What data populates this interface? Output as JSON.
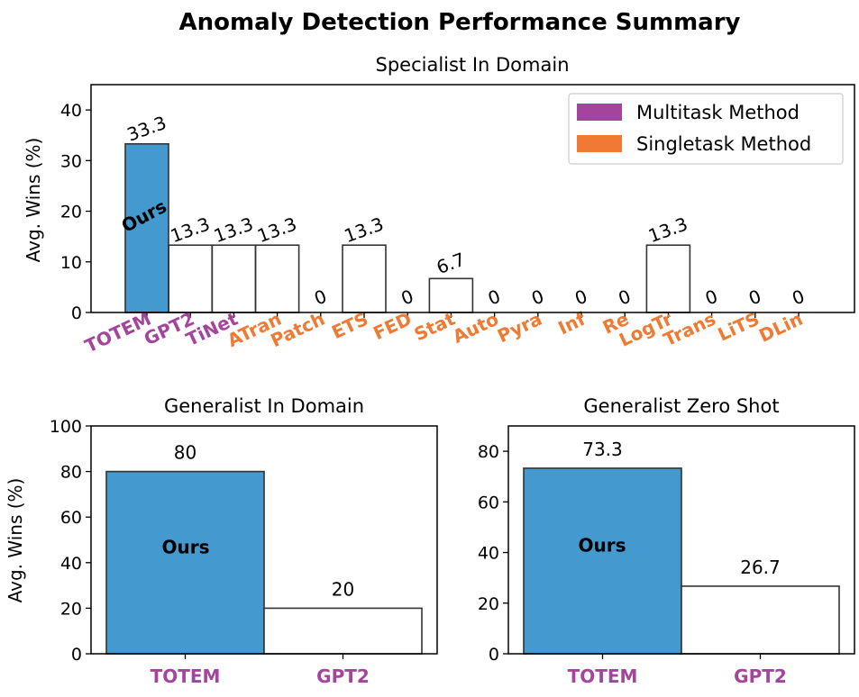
{
  "figure": {
    "title": "Anomaly Detection Performance Summary"
  },
  "colors": {
    "ours_bar": "#4499cf",
    "other_bar": "#ffffff",
    "bar_edge": "#333333",
    "multitask": "#a4449c",
    "singletask": "#f07a33"
  },
  "chart_data": [
    {
      "type": "bar",
      "title": "Specialist In Domain",
      "ylabel": "Avg. Wins (%)",
      "ylim": [
        0,
        45
      ],
      "yticks": [
        0,
        10,
        20,
        30,
        40
      ],
      "categories": [
        "TOTEM",
        "GPT2",
        "TiNet",
        "ATran",
        "Patch",
        "ETS",
        "FED",
        "Stat",
        "Auto",
        "Pyra",
        "Inf",
        "Re",
        "LogTr",
        "Trans",
        "LiTS",
        "DLin"
      ],
      "values": [
        33.3,
        13.3,
        13.3,
        13.3,
        0,
        13.3,
        0,
        6.7,
        0,
        0,
        0,
        0,
        13.3,
        0,
        0,
        0
      ],
      "value_labels": [
        "33.3",
        "13.3",
        "13.3",
        "13.3",
        "0",
        "13.3",
        "0",
        "6.7",
        "0",
        "0",
        "0",
        "0",
        "13.3",
        "0",
        "0",
        "0"
      ],
      "category_types": [
        "multitask",
        "multitask",
        "multitask",
        "singletask",
        "singletask",
        "singletask",
        "singletask",
        "singletask",
        "singletask",
        "singletask",
        "singletask",
        "singletask",
        "singletask",
        "singletask",
        "singletask",
        "singletask"
      ],
      "highlight_label": "Ours",
      "legend": {
        "placement": "top-right",
        "items": [
          {
            "label": "Multitask Method",
            "type": "multitask"
          },
          {
            "label": "Singletask Method",
            "type": "singletask"
          }
        ]
      }
    },
    {
      "type": "bar",
      "title": "Generalist In Domain",
      "ylabel": "Avg. Wins (%)",
      "ylim": [
        0,
        100
      ],
      "yticks": [
        0,
        20,
        40,
        60,
        80,
        100
      ],
      "categories": [
        "TOTEM",
        "GPT2"
      ],
      "values": [
        80,
        20
      ],
      "value_labels": [
        "80",
        "20"
      ],
      "category_types": [
        "multitask",
        "multitask"
      ],
      "highlight_label": "Ours"
    },
    {
      "type": "bar",
      "title": "Generalist Zero Shot",
      "ylabel": "",
      "ylim": [
        0,
        90
      ],
      "yticks": [
        0,
        20,
        40,
        60,
        80
      ],
      "categories": [
        "TOTEM",
        "GPT2"
      ],
      "values": [
        73.3,
        26.7
      ],
      "value_labels": [
        "73.3",
        "26.7"
      ],
      "category_types": [
        "multitask",
        "multitask"
      ],
      "highlight_label": "Ours"
    }
  ]
}
